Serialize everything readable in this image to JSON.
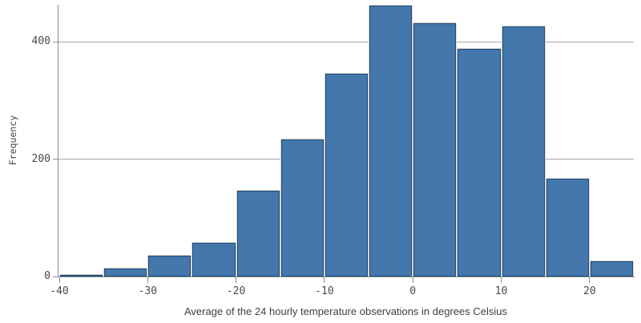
{
  "chart_data": {
    "type": "bar",
    "subtype": "histogram",
    "title": "",
    "xlabel": "Average of the 24 hourly temperature observations in degrees Celsius",
    "ylabel": "Frequency",
    "bin_edges": [
      -40,
      -35,
      -30,
      -25,
      -20,
      -15,
      -10,
      -5,
      0,
      5,
      10,
      15,
      20,
      25
    ],
    "values": [
      3,
      13,
      35,
      57,
      146,
      234,
      345,
      461,
      432,
      388,
      426,
      167,
      26
    ],
    "x_ticks": [
      "-40",
      "-30",
      "-20",
      "-10",
      "0",
      "10",
      "20"
    ],
    "x_tick_values": [
      -40,
      -30,
      -20,
      -10,
      0,
      10,
      20
    ],
    "y_ticks": [
      "0",
      "200",
      "400"
    ],
    "y_tick_values": [
      0,
      200,
      400
    ],
    "xlim": [
      -40,
      25
    ],
    "ylim": [
      0,
      463
    ],
    "grid": "horizontal-only",
    "legend": "none",
    "colors": {
      "bar_fill": "#4477ab",
      "bar_border": "#1d4b7c",
      "bar_outline": "#d9d4cd",
      "axis": "#8c8c8c",
      "grid": "#a8a8a8",
      "tick_text": "#4a4a4a",
      "title_text": "#404040",
      "background": "#ffffff"
    }
  }
}
